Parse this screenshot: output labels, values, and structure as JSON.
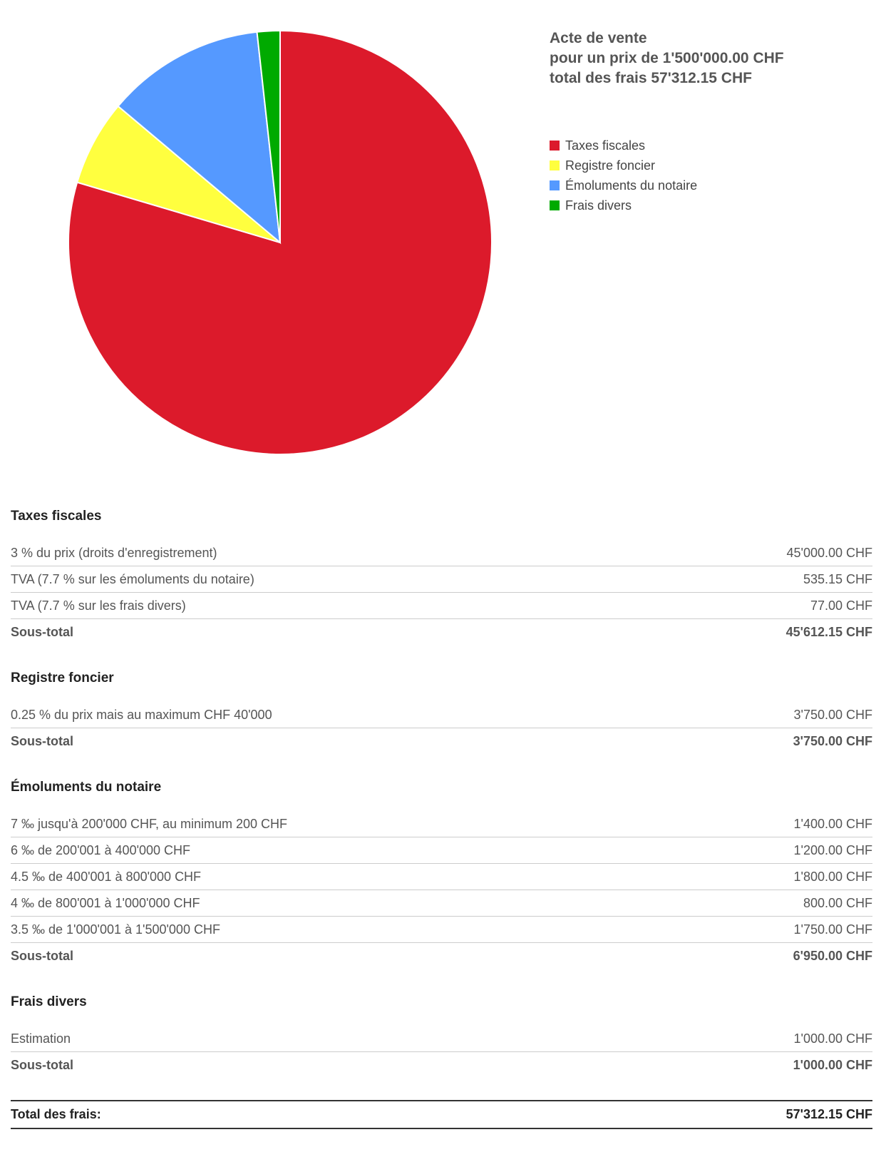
{
  "chart_data": {
    "type": "pie",
    "title_lines": [
      "Acte de vente",
      "pour un prix de 1'500'000.00 CHF",
      "total des frais 57'312.15 CHF"
    ],
    "legend_position": "right",
    "series": [
      {
        "name": "Taxes fiscales",
        "value": 45612.15,
        "color": "#dc1a2b"
      },
      {
        "name": "Registre foncier",
        "value": 3750.0,
        "color": "#ffff3f"
      },
      {
        "name": "Émoluments du notaire",
        "value": 6950.0,
        "color": "#5599ff"
      },
      {
        "name": "Frais divers",
        "value": 1000.0,
        "color": "#00aa00"
      }
    ]
  },
  "sections": [
    {
      "title": "Taxes fiscales",
      "rows": [
        {
          "label": "3 % du prix (droits d'enregistrement)",
          "amount": "45'000.00 CHF"
        },
        {
          "label": "TVA (7.7 % sur les émoluments du notaire)",
          "amount": "535.15 CHF"
        },
        {
          "label": "TVA (7.7 % sur les frais divers)",
          "amount": "77.00 CHF"
        }
      ],
      "subtotal_label": "Sous-total",
      "subtotal_amount": "45'612.15 CHF"
    },
    {
      "title": "Registre foncier",
      "rows": [
        {
          "label": "0.25 % du prix mais au maximum CHF 40'000",
          "amount": "3'750.00 CHF"
        }
      ],
      "subtotal_label": "Sous-total",
      "subtotal_amount": "3'750.00 CHF"
    },
    {
      "title": "Émoluments du notaire",
      "rows": [
        {
          "label": "7 ‰ jusqu'à 200'000 CHF, au minimum 200 CHF",
          "amount": "1'400.00 CHF"
        },
        {
          "label": "6 ‰ de 200'001 à 400'000 CHF",
          "amount": "1'200.00 CHF"
        },
        {
          "label": "4.5 ‰ de 400'001 à 800'000 CHF",
          "amount": "1'800.00 CHF"
        },
        {
          "label": "4 ‰ de 800'001 à 1'000'000 CHF",
          "amount": "800.00 CHF"
        },
        {
          "label": "3.5 ‰ de 1'000'001 à 1'500'000 CHF",
          "amount": "1'750.00 CHF"
        }
      ],
      "subtotal_label": "Sous-total",
      "subtotal_amount": "6'950.00 CHF"
    },
    {
      "title": "Frais divers",
      "rows": [
        {
          "label": "Estimation",
          "amount": "1'000.00 CHF"
        }
      ],
      "subtotal_label": "Sous-total",
      "subtotal_amount": "1'000.00 CHF"
    }
  ],
  "total": {
    "label": "Total des frais:",
    "amount": "57'312.15 CHF"
  }
}
